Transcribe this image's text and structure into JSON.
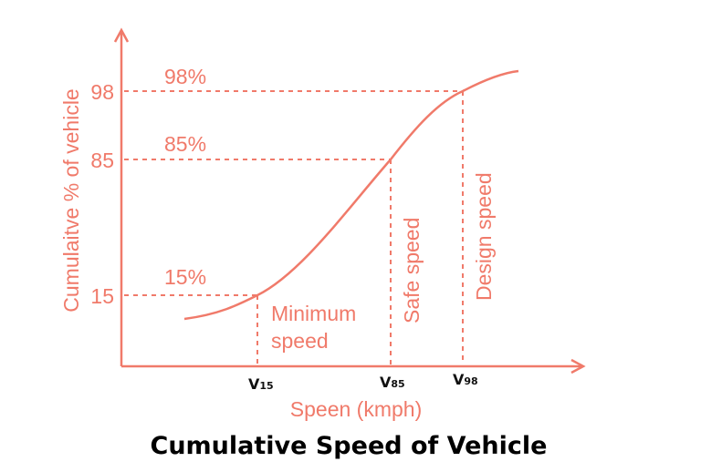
{
  "color": "#f07a6a",
  "title": "Cumulative Speed of Vehicle",
  "axes": {
    "ylabel": "Cumulaitve % of vehicle",
    "xlabel": "Speen (kmph)"
  },
  "y_ticks": [
    "98",
    "85",
    "15"
  ],
  "percent_labels": [
    "98%",
    "85%",
    "15%"
  ],
  "x_markers": [
    {
      "v": "V",
      "sub": "15",
      "label": [
        "Minimum",
        "speed"
      ]
    },
    {
      "v": "V",
      "sub": "85",
      "label": [
        "Safe speed"
      ]
    },
    {
      "v": "V",
      "sub": "98",
      "label": [
        "Design speed"
      ]
    }
  ]
}
